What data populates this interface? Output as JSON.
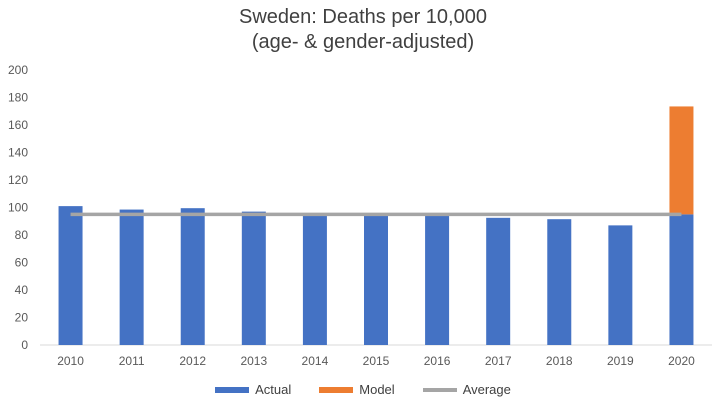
{
  "chart_data": {
    "type": "bar",
    "title": "Sweden: Deaths per 10,000",
    "subtitle": "(age- & gender-adjusted)",
    "categories": [
      "2010",
      "2011",
      "2012",
      "2013",
      "2014",
      "2015",
      "2016",
      "2017",
      "2018",
      "2019",
      "2020"
    ],
    "series": [
      {
        "name": "Actual",
        "kind": "bar",
        "color": "#4472c4",
        "values": [
          101,
          98.5,
          99.5,
          97,
          94,
          94,
          94,
          92.5,
          91.5,
          87,
          95
        ]
      },
      {
        "name": "Model",
        "kind": "bar-stacked",
        "color": "#ed7d31",
        "values": [
          0,
          0,
          0,
          0,
          0,
          0,
          0,
          0,
          0,
          0,
          78.5
        ]
      },
      {
        "name": "Average",
        "kind": "line",
        "color": "#a5a5a5",
        "values": [
          95,
          95,
          95,
          95,
          95,
          95,
          95,
          95,
          95,
          95,
          95
        ]
      }
    ],
    "yticks": [
      0,
      20,
      40,
      60,
      80,
      100,
      120,
      140,
      160,
      180,
      200
    ],
    "ylim": [
      0,
      200
    ],
    "grid": false,
    "legend_position": "bottom"
  }
}
